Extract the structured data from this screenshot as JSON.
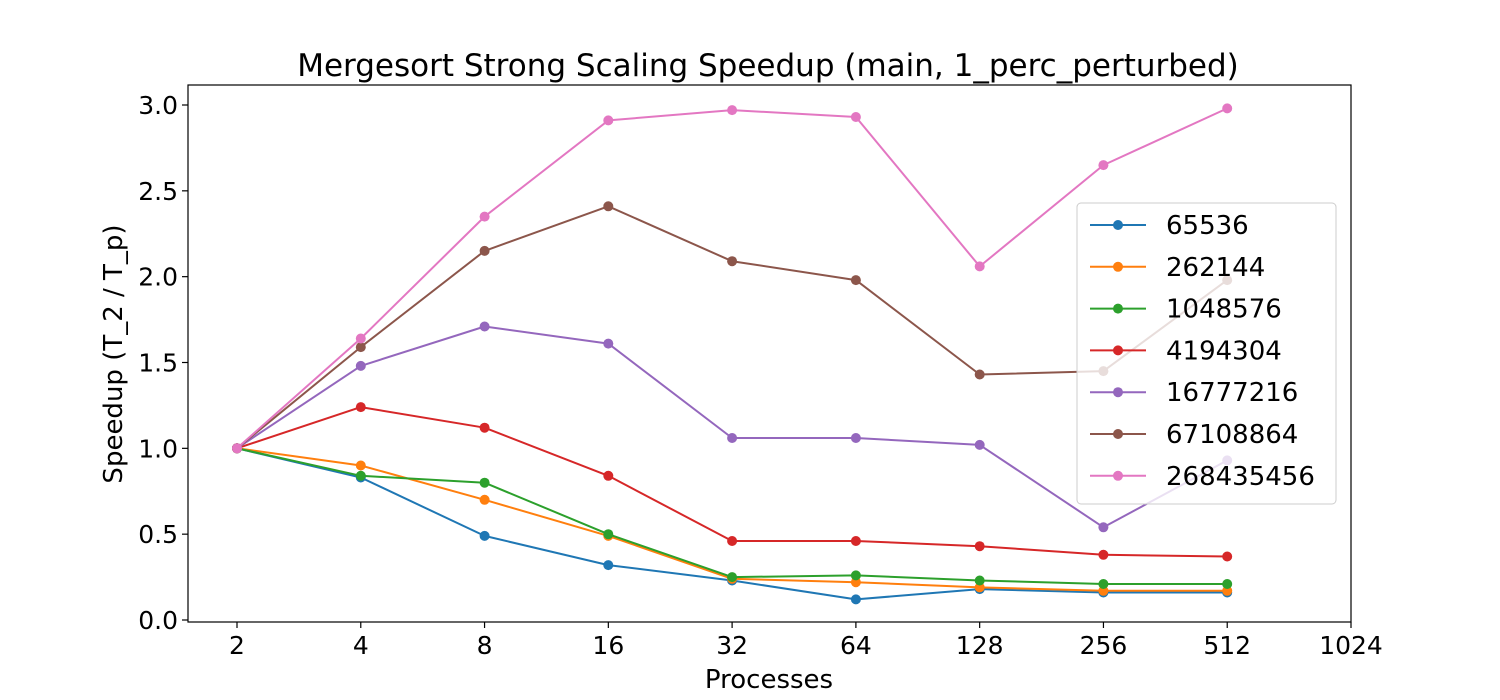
{
  "chart_data": {
    "type": "line",
    "title": "Mergesort Strong Scaling Speedup (main, 1_perc_perturbed)",
    "xlabel": "Processes",
    "ylabel": "Speedup (T_2 / T_p)",
    "x_scale": "log2",
    "x": [
      2,
      4,
      8,
      16,
      32,
      64,
      128,
      256,
      512
    ],
    "xticks": [
      "2",
      "4",
      "8",
      "16",
      "32",
      "64",
      "128",
      "256",
      "512",
      "1024"
    ],
    "xlim": [
      2,
      1024
    ],
    "yticks": [
      "0.0",
      "0.5",
      "1.0",
      "1.5",
      "2.0",
      "2.5",
      "3.0"
    ],
    "ylim": [
      0,
      3.0
    ],
    "grid": false,
    "legend_position": "right",
    "series": [
      {
        "name": "65536",
        "color": "#1f77b4",
        "values": [
          1.0,
          0.83,
          0.49,
          0.32,
          0.23,
          0.12,
          0.18,
          0.16,
          0.16
        ]
      },
      {
        "name": "262144",
        "color": "#ff7f0e",
        "values": [
          1.0,
          0.9,
          0.7,
          0.49,
          0.24,
          0.22,
          0.19,
          0.17,
          0.17
        ]
      },
      {
        "name": "1048576",
        "color": "#2ca02c",
        "values": [
          1.0,
          0.84,
          0.8,
          0.5,
          0.25,
          0.26,
          0.23,
          0.21,
          0.21
        ]
      },
      {
        "name": "4194304",
        "color": "#d62728",
        "values": [
          1.0,
          1.24,
          1.12,
          0.84,
          0.46,
          0.46,
          0.43,
          0.38,
          0.37
        ]
      },
      {
        "name": "16777216",
        "color": "#9467bd",
        "values": [
          1.0,
          1.48,
          1.71,
          1.61,
          1.06,
          1.06,
          1.02,
          0.54,
          0.93
        ]
      },
      {
        "name": "67108864",
        "color": "#8c564b",
        "values": [
          1.0,
          1.59,
          2.15,
          2.41,
          2.09,
          1.98,
          1.43,
          1.45,
          1.98
        ]
      },
      {
        "name": "268435456",
        "color": "#e377c2",
        "values": [
          1.0,
          1.64,
          2.35,
          2.91,
          2.97,
          2.93,
          2.06,
          2.65,
          2.98
        ]
      }
    ]
  }
}
